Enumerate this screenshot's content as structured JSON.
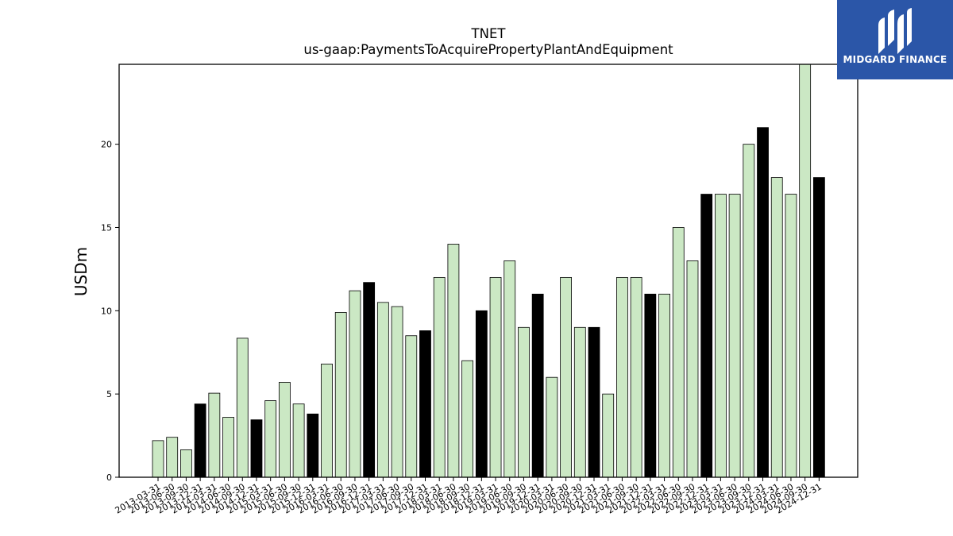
{
  "brand": {
    "name": "MIDGARD FINANCE",
    "bg_color": "#2b56a8",
    "mark_icon": "midgard-logo-mark"
  },
  "chart_data": {
    "type": "bar",
    "title": "TNET",
    "subtitle": "us-gaap:PaymentsToAcquirePropertyPlantAndEquipment",
    "xlabel": "",
    "ylabel": "USDm",
    "ylim": [
      0,
      24.8
    ],
    "yticks": [
      0,
      5,
      10,
      15,
      20
    ],
    "grid": false,
    "colors": {
      "quarter": "#cbe8c4",
      "fiscal_year_end": "#000000",
      "edge": "#000000"
    },
    "categories": [
      "2013-03-31",
      "2013-06-30",
      "2013-09-30",
      "2013-12-31",
      "2014-03-31",
      "2014-06-30",
      "2014-09-30",
      "2014-12-31",
      "2015-03-31",
      "2015-06-30",
      "2015-09-30",
      "2015-12-31",
      "2016-03-31",
      "2016-06-30",
      "2016-09-30",
      "2016-12-31",
      "2017-03-31",
      "2017-06-30",
      "2017-09-30",
      "2017-12-31",
      "2018-03-31",
      "2018-06-30",
      "2018-09-30",
      "2018-12-31",
      "2019-03-31",
      "2019-06-30",
      "2019-09-30",
      "2019-12-31",
      "2020-03-31",
      "2020-06-30",
      "2020-09-30",
      "2020-12-31",
      "2021-03-31",
      "2021-06-30",
      "2021-09-30",
      "2021-12-31",
      "2022-03-31",
      "2022-06-30",
      "2022-09-30",
      "2022-12-31",
      "2023-03-31",
      "2023-06-30",
      "2023-09-30",
      "2023-12-31",
      "2024-03-31",
      "2024-06-30",
      "2024-09-30",
      "2024-12-31"
    ],
    "values": [
      2.2,
      2.4,
      1.65,
      4.4,
      5.05,
      3.6,
      8.35,
      3.45,
      4.6,
      5.7,
      4.4,
      3.8,
      6.8,
      9.9,
      11.2,
      11.7,
      10.5,
      10.25,
      8.5,
      8.8,
      12,
      14,
      7,
      10,
      12,
      13,
      9,
      11,
      6,
      12,
      9,
      9,
      5,
      12,
      12,
      11,
      11,
      15,
      13,
      17,
      17,
      17,
      20,
      21,
      18,
      17,
      25,
      18
    ],
    "year_end": [
      false,
      false,
      false,
      true,
      false,
      false,
      false,
      true,
      false,
      false,
      false,
      true,
      false,
      false,
      false,
      true,
      false,
      false,
      false,
      true,
      false,
      false,
      false,
      true,
      false,
      false,
      false,
      true,
      false,
      false,
      false,
      true,
      false,
      false,
      false,
      true,
      false,
      false,
      false,
      true,
      false,
      false,
      false,
      true,
      false,
      false,
      false,
      true
    ]
  }
}
